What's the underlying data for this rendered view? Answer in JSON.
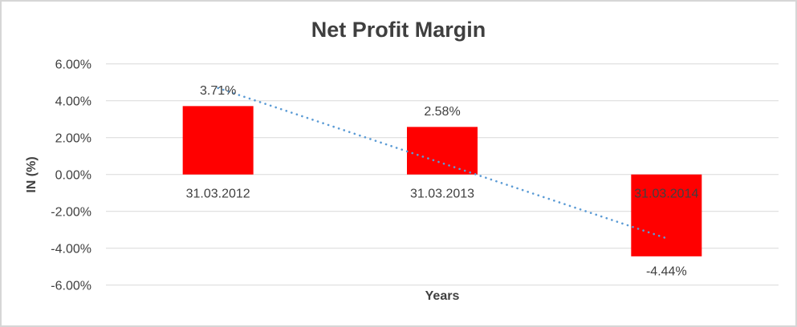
{
  "frame": {
    "background": "#ffffff",
    "border_color": "#d6d6d6"
  },
  "chart_data": {
    "type": "bar",
    "title": "Net Profit Margin",
    "xlabel": "Years",
    "ylabel": "IN (%)",
    "categories": [
      "31.03.2012",
      "31.03.2013",
      "31.03.2014"
    ],
    "series": [
      {
        "name": "Net Profit Margin",
        "values": [
          3.71,
          2.58,
          -4.44
        ]
      }
    ],
    "value_labels": [
      "3.71%",
      "2.58%",
      "-4.44%"
    ],
    "y_ticks": [
      6,
      4,
      2,
      0,
      -2,
      -4,
      -6
    ],
    "y_tick_labels": [
      "6.00%",
      "4.00%",
      "2.00%",
      "0.00%",
      "-2.00%",
      "-4.00%",
      "-6.00%"
    ],
    "ylim": [
      -6,
      6
    ],
    "grid": true,
    "legend": false,
    "bar_color": "#FF0000",
    "text_color": "#404040",
    "gridline_color": "#D9D9D9",
    "trendline": {
      "type": "linear",
      "style": "dotted",
      "color": "#5B9BD5",
      "start_value": 4.69,
      "end_value": -3.46
    }
  }
}
